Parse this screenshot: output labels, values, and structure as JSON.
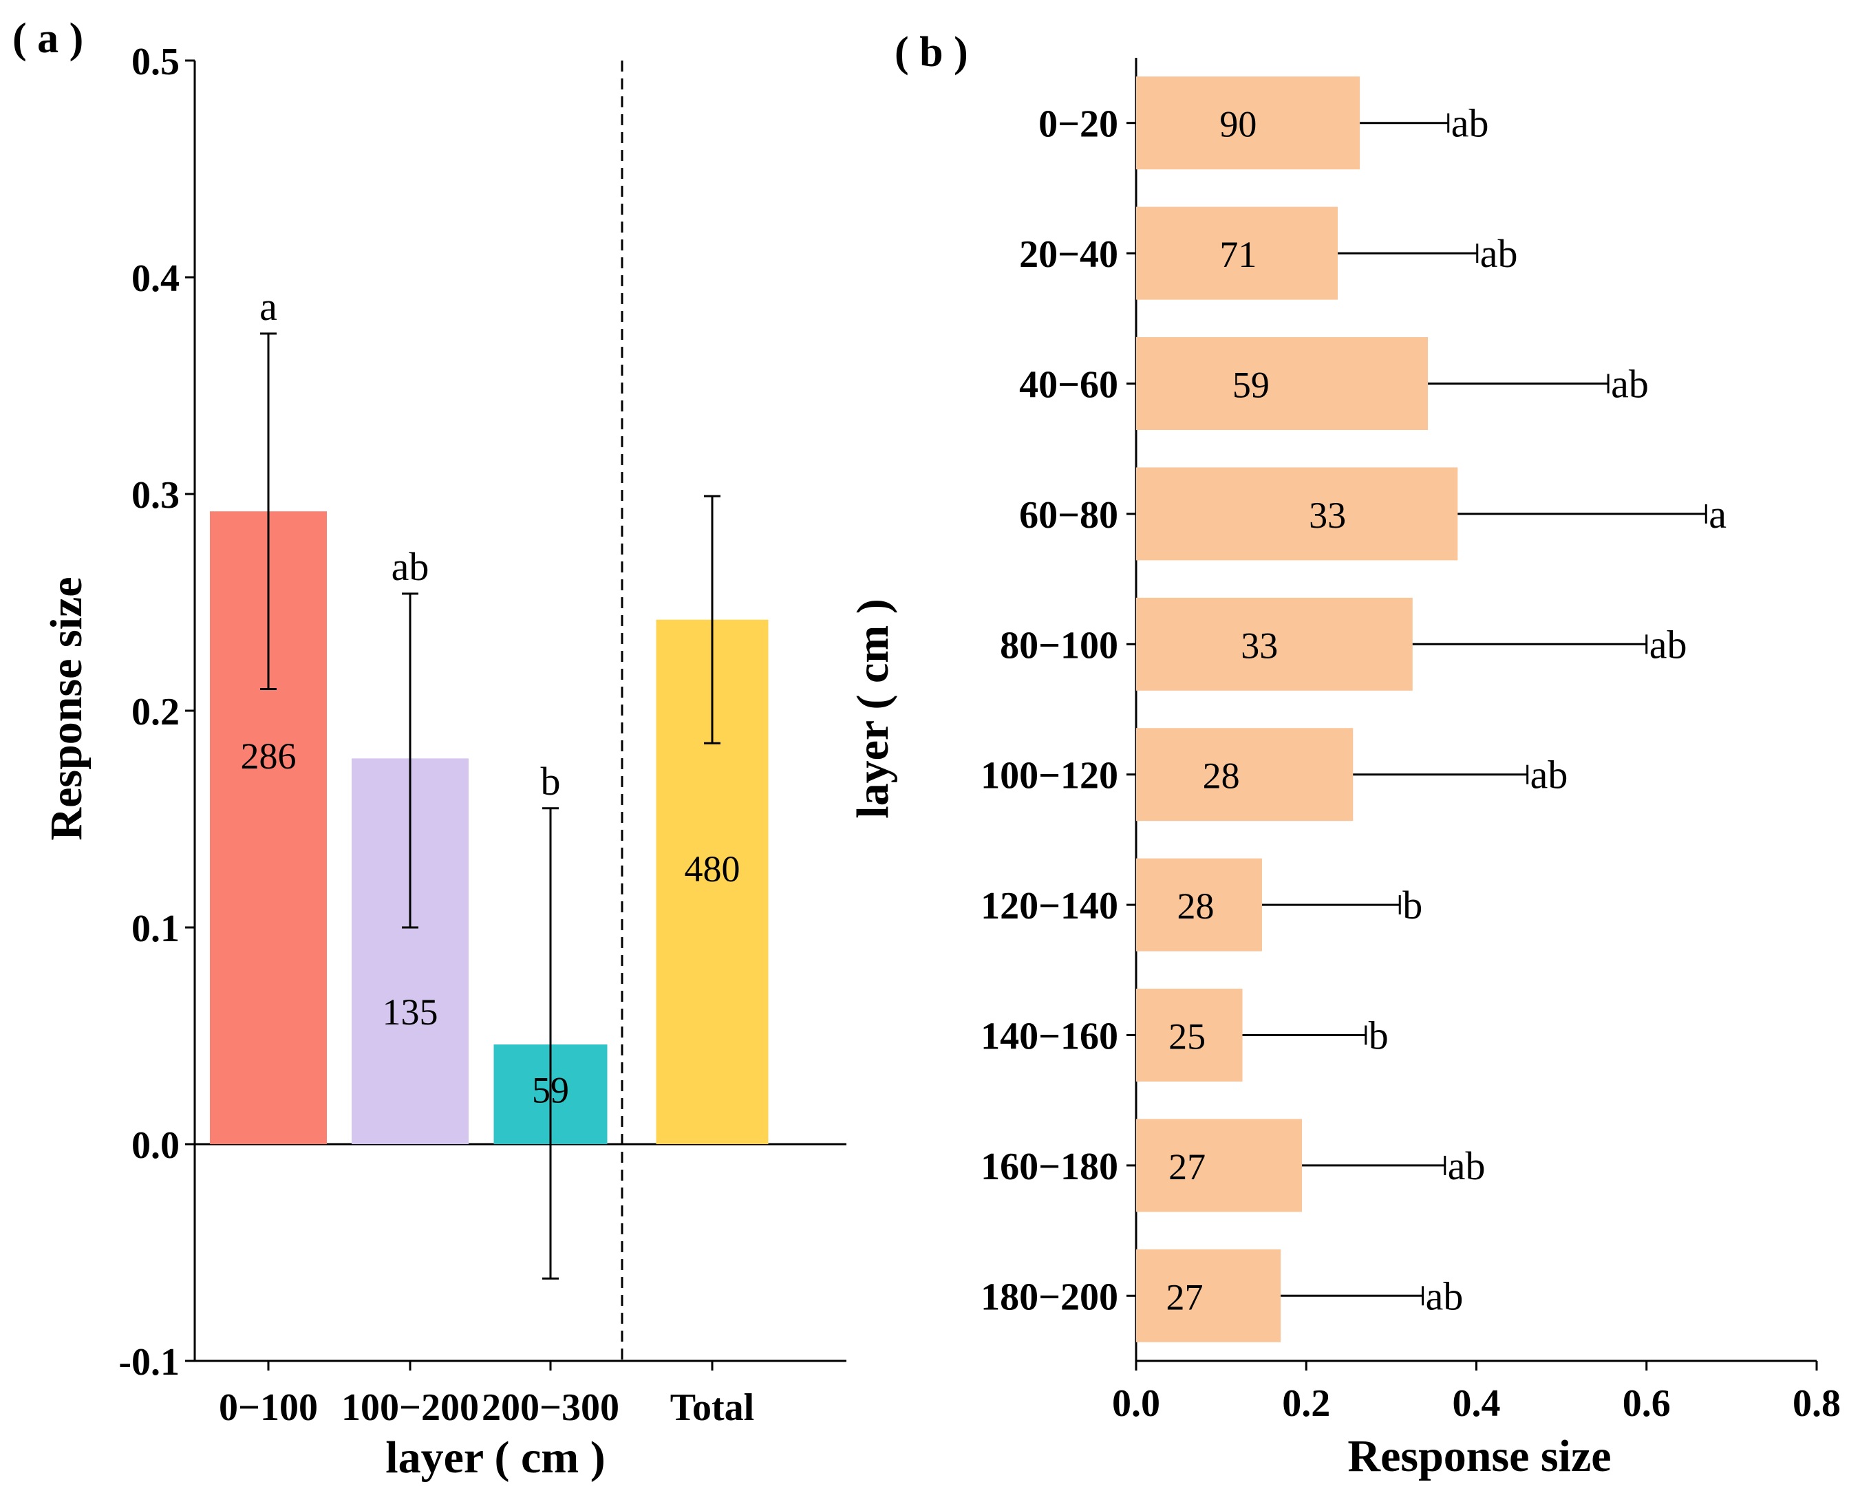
{
  "chart_data": [
    {
      "panel": "( a )",
      "type": "bar",
      "orientation": "vertical",
      "xlabel": "layer ( cm )",
      "ylabel": "Response size",
      "ylim": [
        -0.1,
        0.5
      ],
      "yticks": [
        -0.1,
        0.0,
        0.1,
        0.2,
        0.3,
        0.4,
        0.5
      ],
      "ytick_labels": [
        "-0.1",
        "0.0",
        "0.1",
        "0.2",
        "0.3",
        "0.4",
        "0.5"
      ],
      "categories": [
        "0−100",
        "100−200",
        "200−300",
        "Total"
      ],
      "values": [
        0.292,
        0.178,
        0.046,
        0.242
      ],
      "error_low": [
        0.21,
        0.1,
        -0.062,
        0.185
      ],
      "error_high": [
        0.374,
        0.254,
        0.155,
        0.299
      ],
      "sample_sizes": [
        "286",
        "135",
        "59",
        "480"
      ],
      "sample_label_y": [
        0.179,
        0.061,
        0.025,
        0.127
      ],
      "letters": [
        "a",
        "ab",
        "b",
        ""
      ],
      "colors": [
        "#FA8072",
        "#D5C6F0",
        "#2EC4C8",
        "#FED452"
      ],
      "separator_after_index": 2
    },
    {
      "panel": "( b )",
      "type": "bar",
      "orientation": "horizontal",
      "xlabel": "Response size",
      "ylabel": "layer ( cm )",
      "xlim": [
        0.0,
        0.8
      ],
      "xticks": [
        0.0,
        0.2,
        0.4,
        0.6,
        0.8
      ],
      "xtick_labels": [
        "0.0",
        "0.2",
        "0.4",
        "0.6",
        "0.8"
      ],
      "categories": [
        "0−20",
        "20−40",
        "40−60",
        "60−80",
        "80−100",
        "100−120",
        "120−140",
        "140−160",
        "160−180",
        "180−200"
      ],
      "values": [
        0.263,
        0.237,
        0.343,
        0.378,
        0.325,
        0.255,
        0.148,
        0.125,
        0.195,
        0.17
      ],
      "error_high": [
        0.367,
        0.401,
        0.555,
        0.67,
        0.6,
        0.46,
        0.31,
        0.27,
        0.363,
        0.337
      ],
      "sample_sizes": [
        "90",
        "71",
        "59",
        "33",
        "33",
        "28",
        "28",
        "25",
        "27",
        "27"
      ],
      "sample_label_x": [
        0.12,
        0.12,
        0.135,
        0.225,
        0.145,
        0.1,
        0.07,
        0.06,
        0.06,
        0.057
      ],
      "letters": [
        "ab",
        "ab",
        "ab",
        "a",
        "ab",
        "ab",
        "b",
        "b",
        "ab",
        "ab"
      ],
      "color": "#FAC598"
    }
  ]
}
